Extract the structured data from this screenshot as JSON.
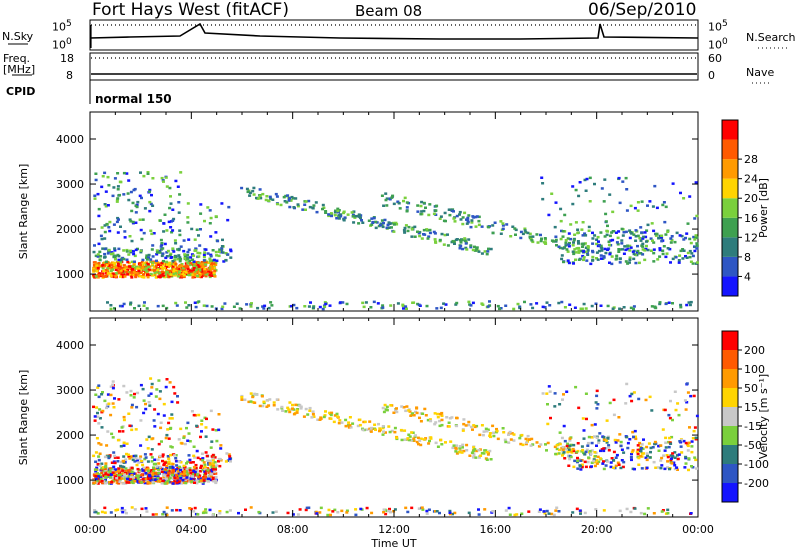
{
  "header": {
    "title": "Fort Hays West (fitACF)",
    "beam": "Beam 08",
    "date": "06/Sep/2010"
  },
  "strip_sky": {
    "left_label": "N.Sky",
    "left_ticks": [
      "10^5",
      "10^0"
    ],
    "right_label": "N.Search",
    "right_ticks": [
      "10^5",
      "10^0"
    ]
  },
  "strip_freq": {
    "left_label_1": "Freq.",
    "left_label_2": "[MHz]",
    "left_ticks": [
      "18",
      "8"
    ],
    "right_label": "Nave",
    "right_ticks": [
      "60",
      "0"
    ]
  },
  "cpid": {
    "label": "CPID",
    "program": "normal 150"
  },
  "chart_data": [
    {
      "type": "heatmap",
      "name": "power",
      "ylabel": "Slant Range [km]",
      "yticks": [
        "1000",
        "2000",
        "3000",
        "4000"
      ],
      "ylim": [
        180,
        4600
      ],
      "xticks": [
        "00:00",
        "04:00",
        "08:00",
        "12:00",
        "16:00",
        "20:00",
        "00:00"
      ],
      "colorbar_label": "Power [dB]",
      "colorbar_ticks": [
        "4",
        "8",
        "12",
        "16",
        "20",
        "24",
        "28"
      ],
      "colorbar_colors": [
        "#1414ff",
        "#2e56c4",
        "#2e7c7c",
        "#3ea050",
        "#7ad03c",
        "#ffd400",
        "#ff9a00",
        "#ff5a00",
        "#ff0000"
      ]
    },
    {
      "type": "heatmap",
      "name": "velocity",
      "ylabel": "Slant Range [km]",
      "yticks": [
        "1000",
        "2000",
        "3000",
        "4000"
      ],
      "ylim": [
        180,
        4600
      ],
      "xticks": [
        "00:00",
        "04:00",
        "08:00",
        "12:00",
        "16:00",
        "20:00",
        "00:00"
      ],
      "xlabel": "Time UT",
      "colorbar_label": "Velocity [m s⁻¹]",
      "colorbar_ticks": [
        "200",
        "100",
        "50",
        "15",
        "-15",
        "-50",
        "-100",
        "-200"
      ],
      "colorbar_colors": [
        "#1414ff",
        "#2e56c4",
        "#2e7c7c",
        "#7ad03c",
        "#c8c8c8",
        "#ffd400",
        "#ff9a00",
        "#ff5a00",
        "#ff0000"
      ]
    }
  ]
}
